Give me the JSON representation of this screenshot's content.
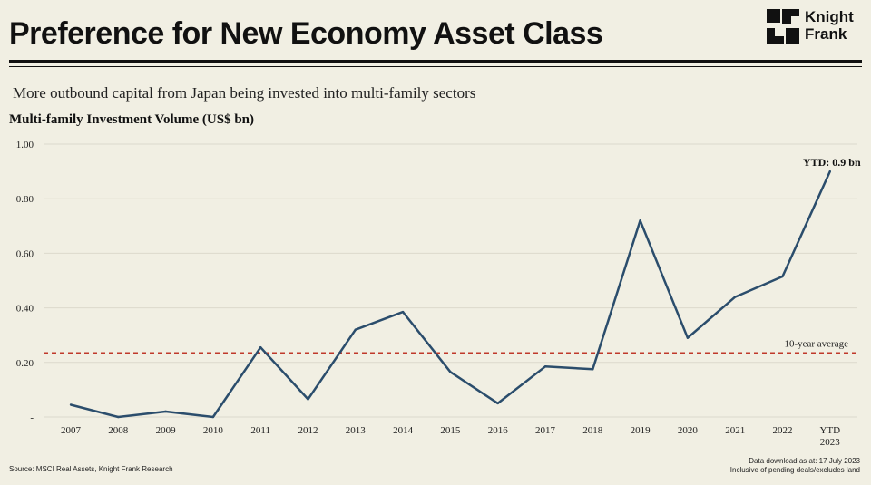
{
  "header": {
    "title": "Preference for New Economy Asset Class",
    "logo_line1": "Knight",
    "logo_line2": "Frank"
  },
  "subtitle": "More outbound capital from Japan being invested into multi-family sectors",
  "chart_title": "Multi-family Investment Volume (US$ bn)",
  "footer": {
    "source": "Source: MSCI Real Assets, Knight Frank Research",
    "note_line1": "Data download as at: 17 July 2023",
    "note_line2": "Inclusive of pending deals/excludes land"
  },
  "colors": {
    "line": "#2b4d6c",
    "average": "#c0392b",
    "background": "#f1efe3"
  },
  "chart_data": {
    "type": "line",
    "title": "Multi-family Investment Volume (US$ bn)",
    "categories": [
      "2007",
      "2008",
      "2009",
      "2010",
      "2011",
      "2012",
      "2013",
      "2014",
      "2015",
      "2016",
      "2017",
      "2018",
      "2019",
      "2020",
      "2021",
      "2022",
      "YTD 2023"
    ],
    "values": [
      0.045,
      0.0,
      0.02,
      0.0,
      0.255,
      0.065,
      0.32,
      0.385,
      0.165,
      0.05,
      0.185,
      0.175,
      0.72,
      0.29,
      0.44,
      0.515,
      0.9
    ],
    "ylim": [
      0,
      1.0
    ],
    "yticks": [
      0,
      0.2,
      0.4,
      0.6,
      0.8,
      1.0
    ],
    "ytick_labels": [
      "-",
      "0.20",
      "0.40",
      "0.60",
      "0.80",
      "1.00"
    ],
    "average": {
      "label": "10-year average",
      "value": 0.235
    },
    "annotation": {
      "text": "YTD: 0.9 bn",
      "category_index": 16
    },
    "grid": true,
    "legend": "none"
  }
}
